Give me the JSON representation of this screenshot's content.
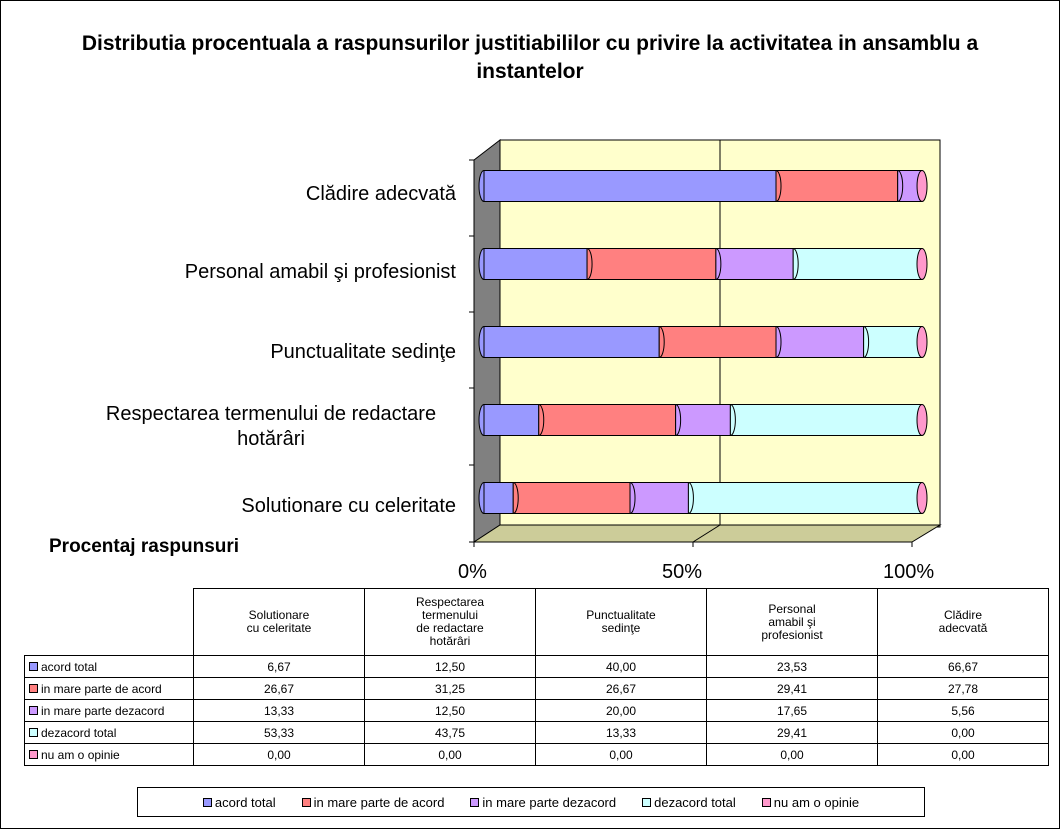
{
  "chart_data": {
    "type": "bar",
    "orientation": "horizontal",
    "stacked": "percent",
    "title": "Distributia procentuala a raspunsurilor justitiabililor cu privire la activitatea in ansamblu a instantelor",
    "xlabel": "Procentaj raspunsuri",
    "categories": [
      "Solutionare cu celeritate",
      "Respectarea termenului de redactare hotărâri",
      "Punctualitate sedinţe",
      "Personal amabil şi profesionist",
      "Clădire adecvată"
    ],
    "xticks": [
      "0%",
      "50%",
      "100%"
    ],
    "xlim": [
      0,
      100
    ],
    "legend_position": "bottom",
    "series": [
      {
        "name": "acord total",
        "color": "#9999FF",
        "values": [
          6.67,
          12.5,
          40.0,
          23.53,
          66.67
        ]
      },
      {
        "name": "in mare parte de acord",
        "color": "#FF8080",
        "values": [
          26.67,
          31.25,
          26.67,
          29.41,
          27.78
        ]
      },
      {
        "name": "in mare parte dezacord",
        "color": "#CC99FF",
        "values": [
          13.33,
          12.5,
          20.0,
          17.65,
          5.56
        ]
      },
      {
        "name": "dezacord total",
        "color": "#CCFFFF",
        "values": [
          53.33,
          43.75,
          13.33,
          29.41,
          0.0
        ]
      },
      {
        "name": "nu am o opinie",
        "color": "#FF99CC",
        "values": [
          0.0,
          0.0,
          0.0,
          0.0,
          0.0
        ]
      }
    ],
    "plot_background": "#FFFFCC",
    "wall_color": "#808080",
    "floor_color": "#CCCC99"
  },
  "table": {
    "headers": [
      "Solutionare\ncu celeritate",
      "Respectarea\ntermenului\nde redactare\nhotărâri",
      "Punctualitate\nsedinţe",
      "Personal\namabil şi\nprofesionist",
      "Clădire\nadecvată"
    ],
    "rows": [
      {
        "label": "acord total",
        "color": "#9999FF",
        "values": [
          "6,67",
          "12,50",
          "40,00",
          "23,53",
          "66,67"
        ]
      },
      {
        "label": "in mare parte de acord",
        "color": "#FF8080",
        "values": [
          "26,67",
          "31,25",
          "26,67",
          "29,41",
          "27,78"
        ]
      },
      {
        "label": "in mare parte dezacord",
        "color": "#CC99FF",
        "values": [
          "13,33",
          "12,50",
          "20,00",
          "17,65",
          "5,56"
        ]
      },
      {
        "label": "dezacord total",
        "color": "#CCFFFF",
        "values": [
          "53,33",
          "43,75",
          "13,33",
          "29,41",
          "0,00"
        ]
      },
      {
        "label": "nu am o opinie",
        "color": "#FF99CC",
        "values": [
          "0,00",
          "0,00",
          "0,00",
          "0,00",
          "0,00"
        ]
      }
    ]
  }
}
